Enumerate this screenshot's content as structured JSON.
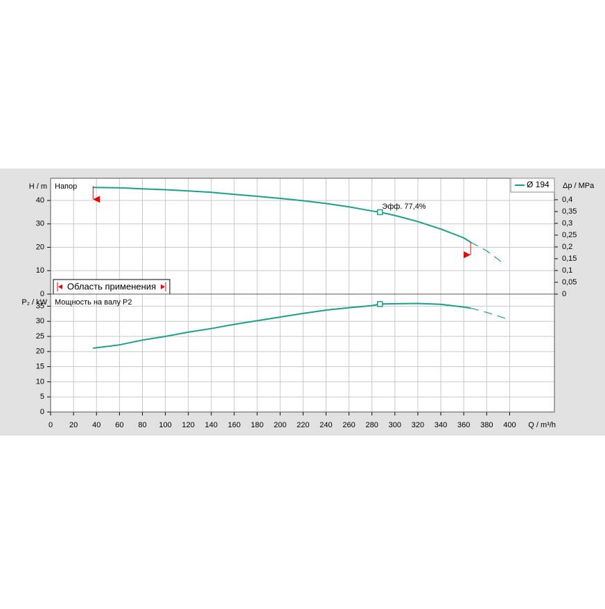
{
  "chart_data": [
    {
      "type": "line",
      "title": "Напор",
      "y_label": "H / m",
      "y2_label": "Δp / MPa",
      "xlim": [
        0,
        439
      ],
      "xticks": [
        0,
        20,
        40,
        60,
        80,
        100,
        120,
        140,
        160,
        180,
        200,
        220,
        240,
        260,
        280,
        300,
        320,
        340,
        360,
        380,
        400
      ],
      "xtick_labels": false,
      "ylim": [
        0,
        49.5
      ],
      "yticks": [
        0,
        10,
        20,
        30,
        40
      ],
      "y2lim": [
        0,
        0.491
      ],
      "y2ticks": [
        0,
        {
          "value": 0.05,
          "label": "0,05"
        },
        {
          "value": 0.1,
          "label": "0,1"
        },
        {
          "value": 0.15,
          "label": "0,15"
        },
        {
          "value": 0.2,
          "label": "0,2"
        },
        {
          "value": 0.25,
          "label": "0,25"
        },
        {
          "value": 0.3,
          "label": "0,3"
        },
        {
          "value": 0.35,
          "label": "0,35"
        },
        {
          "value": 0.4,
          "label": "0,4"
        }
      ],
      "grid": true,
      "series": [
        {
          "name": "Ø 194",
          "color": "#17a08a",
          "style": "solid",
          "x": [
            37,
            60,
            80,
            100,
            120,
            140,
            160,
            180,
            200,
            220,
            240,
            260,
            280,
            287,
            300,
            320,
            340,
            360,
            366
          ],
          "values": [
            45.6,
            45.4,
            45.0,
            44.6,
            44.1,
            43.5,
            42.6,
            41.8,
            40.9,
            39.9,
            38.7,
            37.3,
            35.5,
            35.0,
            33.6,
            31.0,
            27.8,
            24.0,
            22.2
          ]
        },
        {
          "color": "#17a08a",
          "style": "dashed",
          "x": [
            366,
            380,
            395
          ],
          "values": [
            22.2,
            18.5,
            13.0
          ]
        }
      ],
      "duty_point": {
        "x": 287,
        "y": 35.0
      },
      "annotation": "Эфф.  77,4%",
      "range_markers": [
        {
          "x": 37,
          "y": 40.5
        },
        {
          "x": 366,
          "y": 16.8
        }
      ],
      "range_label": "Область применения"
    },
    {
      "type": "line",
      "title": "Мощность на валу P2",
      "y_label": "P₂ / kW",
      "x_label": "Q / m³/h",
      "xlim": [
        0,
        439
      ],
      "xticks": [
        0,
        20,
        40,
        60,
        80,
        100,
        120,
        140,
        160,
        180,
        200,
        220,
        240,
        260,
        280,
        300,
        320,
        340,
        360,
        380,
        400
      ],
      "xtick_labels": true,
      "ylim": [
        0,
        39
      ],
      "yticks": [
        0,
        5,
        10,
        15,
        20,
        25,
        30,
        35
      ],
      "grid": true,
      "series": [
        {
          "color": "#17a08a",
          "style": "solid",
          "x": [
            37,
            60,
            80,
            100,
            120,
            140,
            160,
            180,
            200,
            220,
            240,
            260,
            280,
            287,
            300,
            320,
            340,
            360,
            366
          ],
          "values": [
            21.1,
            22.2,
            23.8,
            25.0,
            26.4,
            27.6,
            29.0,
            30.2,
            31.4,
            32.6,
            33.7,
            34.5,
            35.2,
            35.7,
            35.8,
            35.9,
            35.6,
            34.7,
            34.4
          ]
        },
        {
          "color": "#17a08a",
          "style": "dashed",
          "x": [
            366,
            383,
            400
          ],
          "values": [
            34.4,
            32.6,
            30.5
          ]
        }
      ],
      "duty_point": {
        "x": 287,
        "y": 35.7
      }
    }
  ]
}
